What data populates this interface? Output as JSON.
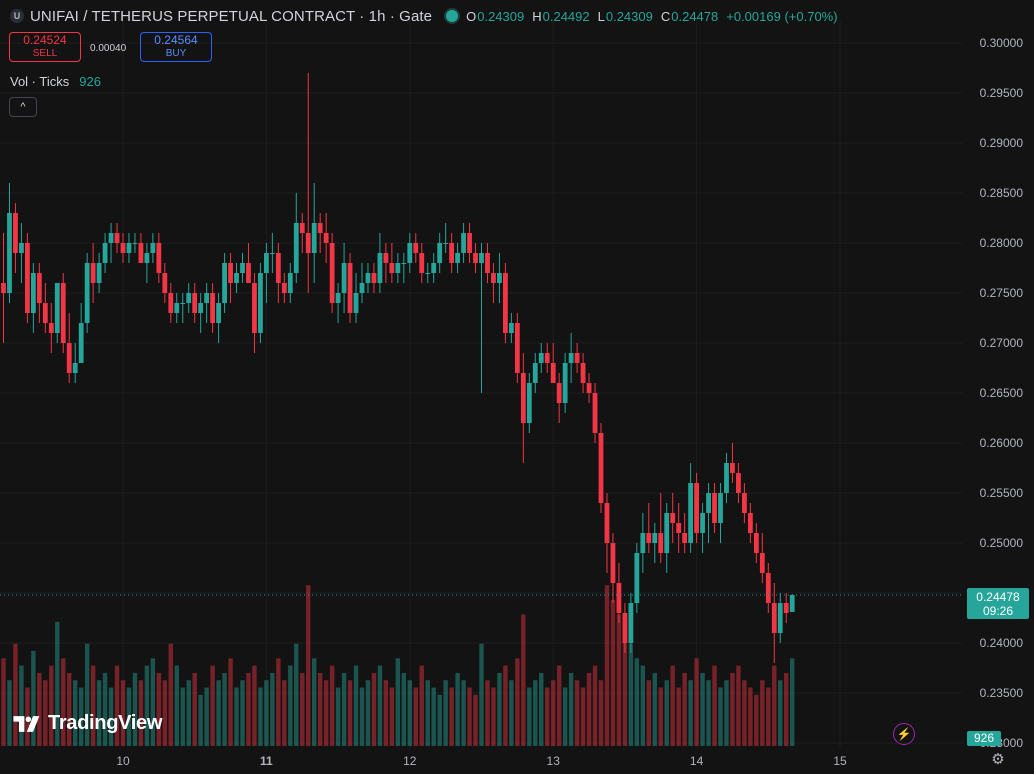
{
  "header": {
    "symbol_icon": "unifai-logo-icon",
    "symbol_icon_glyph": "U",
    "title": "UNIFAI / TETHERUS PERPETUAL CONTRACT · 1h · Gate",
    "ohlc": {
      "o_label": "O",
      "o": "0.24309",
      "h_label": "H",
      "h": "0.24492",
      "l_label": "L",
      "l": "0.24309",
      "c_label": "C",
      "c": "0.24478",
      "change": "+0.00169 (+0.70%)"
    }
  },
  "trade": {
    "sell_price": "0.24524",
    "sell_label": "SELL",
    "spread": "0.00040",
    "buy_price": "0.24564",
    "buy_label": "BUY"
  },
  "volume_legend": {
    "label": "Vol · Ticks",
    "value": "926"
  },
  "collapse_glyph": "^",
  "last_price": {
    "price": "0.24478",
    "countdown": "09:26"
  },
  "volume_badge": "926",
  "branding": {
    "logo_text": "TradingView"
  },
  "colors": {
    "up": "#26a69a",
    "down": "#f23645",
    "background": "#131313",
    "grid": "#1e1e1e"
  },
  "chart_data": {
    "type": "candlestick",
    "interval": "1h",
    "price_axis": {
      "ylim": [
        0.23,
        0.3
      ],
      "ticks": [
        "0.30000",
        "0.29500",
        "0.29000",
        "0.28500",
        "0.28000",
        "0.27500",
        "0.27000",
        "0.26500",
        "0.26000",
        "0.25500",
        "0.25000",
        "0.24500",
        "0.24000",
        "0.23500",
        "0.23000"
      ]
    },
    "time_axis": {
      "ticks": [
        {
          "label": "10",
          "hour": 0,
          "bold": false
        },
        {
          "label": "11",
          "hour": 24,
          "bold": true
        },
        {
          "label": "12",
          "hour": 48,
          "bold": false
        },
        {
          "label": "13",
          "hour": 72,
          "bold": false
        },
        {
          "label": "14",
          "hour": 96,
          "bold": false
        },
        {
          "label": "15",
          "hour": 120,
          "bold": false
        }
      ],
      "first_bar_hour": -20
    },
    "ohlc": [
      [
        0.276,
        0.281,
        0.27,
        0.275
      ],
      [
        0.275,
        0.286,
        0.274,
        0.283
      ],
      [
        0.283,
        0.284,
        0.277,
        0.279
      ],
      [
        0.279,
        0.282,
        0.276,
        0.28
      ],
      [
        0.28,
        0.281,
        0.272,
        0.273
      ],
      [
        0.273,
        0.278,
        0.271,
        0.277
      ],
      [
        0.277,
        0.278,
        0.272,
        0.274
      ],
      [
        0.274,
        0.276,
        0.271,
        0.272
      ],
      [
        0.272,
        0.274,
        0.269,
        0.271
      ],
      [
        0.271,
        0.276,
        0.27,
        0.276
      ],
      [
        0.276,
        0.277,
        0.269,
        0.27
      ],
      [
        0.27,
        0.273,
        0.266,
        0.267
      ],
      [
        0.267,
        0.27,
        0.266,
        0.268
      ],
      [
        0.268,
        0.274,
        0.268,
        0.272
      ],
      [
        0.272,
        0.279,
        0.271,
        0.278
      ],
      [
        0.278,
        0.28,
        0.274,
        0.276
      ],
      [
        0.276,
        0.279,
        0.275,
        0.278
      ],
      [
        0.278,
        0.281,
        0.277,
        0.28
      ],
      [
        0.28,
        0.282,
        0.278,
        0.281
      ],
      [
        0.281,
        0.282,
        0.279,
        0.28
      ],
      [
        0.28,
        0.281,
        0.278,
        0.279
      ],
      [
        0.279,
        0.281,
        0.278,
        0.28
      ],
      [
        0.28,
        0.281,
        0.279,
        0.28
      ],
      [
        0.28,
        0.281,
        0.278,
        0.278
      ],
      [
        0.278,
        0.28,
        0.276,
        0.279
      ],
      [
        0.279,
        0.281,
        0.278,
        0.28
      ],
      [
        0.28,
        0.281,
        0.276,
        0.277
      ],
      [
        0.277,
        0.278,
        0.274,
        0.275
      ],
      [
        0.275,
        0.276,
        0.272,
        0.273
      ],
      [
        0.273,
        0.275,
        0.272,
        0.274
      ],
      [
        0.274,
        0.275,
        0.272,
        0.274
      ],
      [
        0.274,
        0.276,
        0.273,
        0.275
      ],
      [
        0.275,
        0.276,
        0.272,
        0.273
      ],
      [
        0.273,
        0.275,
        0.271,
        0.274
      ],
      [
        0.274,
        0.276,
        0.272,
        0.275
      ],
      [
        0.275,
        0.276,
        0.271,
        0.272
      ],
      [
        0.272,
        0.275,
        0.27,
        0.274
      ],
      [
        0.274,
        0.279,
        0.273,
        0.278
      ],
      [
        0.278,
        0.279,
        0.274,
        0.276
      ],
      [
        0.276,
        0.278,
        0.275,
        0.277
      ],
      [
        0.277,
        0.279,
        0.276,
        0.278
      ],
      [
        0.278,
        0.28,
        0.276,
        0.276
      ],
      [
        0.276,
        0.277,
        0.269,
        0.271
      ],
      [
        0.271,
        0.278,
        0.27,
        0.277
      ],
      [
        0.277,
        0.28,
        0.274,
        0.279
      ],
      [
        0.279,
        0.281,
        0.277,
        0.279
      ],
      [
        0.279,
        0.28,
        0.274,
        0.276
      ],
      [
        0.276,
        0.277,
        0.274,
        0.275
      ],
      [
        0.275,
        0.278,
        0.274,
        0.277
      ],
      [
        0.277,
        0.285,
        0.276,
        0.282
      ],
      [
        0.282,
        0.283,
        0.279,
        0.281
      ],
      [
        0.281,
        0.297,
        0.275,
        0.279
      ],
      [
        0.279,
        0.286,
        0.276,
        0.282
      ],
      [
        0.282,
        0.283,
        0.279,
        0.281
      ],
      [
        0.281,
        0.283,
        0.278,
        0.28
      ],
      [
        0.28,
        0.281,
        0.273,
        0.274
      ],
      [
        0.274,
        0.276,
        0.272,
        0.275
      ],
      [
        0.275,
        0.28,
        0.273,
        0.278
      ],
      [
        0.278,
        0.279,
        0.272,
        0.273
      ],
      [
        0.273,
        0.277,
        0.272,
        0.275
      ],
      [
        0.275,
        0.278,
        0.274,
        0.276
      ],
      [
        0.276,
        0.278,
        0.275,
        0.277
      ],
      [
        0.277,
        0.278,
        0.275,
        0.276
      ],
      [
        0.276,
        0.281,
        0.275,
        0.279
      ],
      [
        0.279,
        0.28,
        0.276,
        0.278
      ],
      [
        0.278,
        0.28,
        0.276,
        0.277
      ],
      [
        0.277,
        0.279,
        0.276,
        0.278
      ],
      [
        0.278,
        0.279,
        0.276,
        0.278
      ],
      [
        0.278,
        0.281,
        0.277,
        0.28
      ],
      [
        0.28,
        0.281,
        0.278,
        0.279
      ],
      [
        0.279,
        0.28,
        0.276,
        0.277
      ],
      [
        0.277,
        0.278,
        0.276,
        0.277
      ],
      [
        0.277,
        0.279,
        0.276,
        0.278
      ],
      [
        0.278,
        0.281,
        0.277,
        0.28
      ],
      [
        0.28,
        0.282,
        0.279,
        0.28
      ],
      [
        0.28,
        0.281,
        0.277,
        0.278
      ],
      [
        0.278,
        0.28,
        0.277,
        0.279
      ],
      [
        0.279,
        0.282,
        0.278,
        0.281
      ],
      [
        0.281,
        0.282,
        0.278,
        0.279
      ],
      [
        0.279,
        0.28,
        0.277,
        0.278
      ],
      [
        0.278,
        0.28,
        0.265,
        0.279
      ],
      [
        0.279,
        0.28,
        0.276,
        0.277
      ],
      [
        0.277,
        0.278,
        0.274,
        0.276
      ],
      [
        0.276,
        0.279,
        0.274,
        0.277
      ],
      [
        0.277,
        0.278,
        0.27,
        0.271
      ],
      [
        0.271,
        0.273,
        0.27,
        0.272
      ],
      [
        0.272,
        0.273,
        0.266,
        0.267
      ],
      [
        0.267,
        0.269,
        0.258,
        0.262
      ],
      [
        0.262,
        0.267,
        0.261,
        0.266
      ],
      [
        0.266,
        0.269,
        0.265,
        0.268
      ],
      [
        0.268,
        0.27,
        0.267,
        0.269
      ],
      [
        0.269,
        0.27,
        0.267,
        0.268
      ],
      [
        0.268,
        0.27,
        0.266,
        0.266
      ],
      [
        0.266,
        0.267,
        0.262,
        0.264
      ],
      [
        0.264,
        0.269,
        0.263,
        0.268
      ],
      [
        0.268,
        0.271,
        0.266,
        0.269
      ],
      [
        0.269,
        0.27,
        0.267,
        0.268
      ],
      [
        0.268,
        0.269,
        0.265,
        0.266
      ],
      [
        0.266,
        0.267,
        0.264,
        0.265
      ],
      [
        0.265,
        0.266,
        0.26,
        0.261
      ],
      [
        0.261,
        0.262,
        0.253,
        0.254
      ],
      [
        0.254,
        0.255,
        0.247,
        0.25
      ],
      [
        0.25,
        0.251,
        0.244,
        0.246
      ],
      [
        0.246,
        0.248,
        0.242,
        0.243
      ],
      [
        0.243,
        0.244,
        0.239,
        0.24
      ],
      [
        0.24,
        0.245,
        0.239,
        0.244
      ],
      [
        0.244,
        0.25,
        0.243,
        0.249
      ],
      [
        0.249,
        0.253,
        0.247,
        0.251
      ],
      [
        0.251,
        0.254,
        0.249,
        0.25
      ],
      [
        0.25,
        0.252,
        0.248,
        0.251
      ],
      [
        0.251,
        0.255,
        0.248,
        0.249
      ],
      [
        0.249,
        0.254,
        0.247,
        0.253
      ],
      [
        0.253,
        0.255,
        0.25,
        0.252
      ],
      [
        0.252,
        0.254,
        0.249,
        0.251
      ],
      [
        0.251,
        0.253,
        0.249,
        0.25
      ],
      [
        0.25,
        0.258,
        0.249,
        0.256
      ],
      [
        0.256,
        0.257,
        0.25,
        0.251
      ],
      [
        0.251,
        0.254,
        0.249,
        0.253
      ],
      [
        0.253,
        0.256,
        0.25,
        0.255
      ],
      [
        0.255,
        0.256,
        0.251,
        0.252
      ],
      [
        0.252,
        0.256,
        0.25,
        0.255
      ],
      [
        0.255,
        0.259,
        0.254,
        0.258
      ],
      [
        0.258,
        0.26,
        0.256,
        0.257
      ],
      [
        0.257,
        0.258,
        0.254,
        0.255
      ],
      [
        0.255,
        0.256,
        0.252,
        0.253
      ],
      [
        0.253,
        0.254,
        0.25,
        0.251
      ],
      [
        0.251,
        0.252,
        0.248,
        0.249
      ],
      [
        0.249,
        0.251,
        0.246,
        0.247
      ],
      [
        0.247,
        0.248,
        0.243,
        0.244
      ],
      [
        0.244,
        0.246,
        0.238,
        0.241
      ],
      [
        0.241,
        0.245,
        0.24,
        0.244
      ],
      [
        0.244,
        0.245,
        0.242,
        0.243
      ],
      [
        0.2431,
        0.2449,
        0.2431,
        0.2448
      ]
    ],
    "volume": [
      60,
      45,
      70,
      55,
      40,
      65,
      50,
      45,
      55,
      85,
      60,
      50,
      45,
      40,
      70,
      55,
      45,
      50,
      40,
      55,
      45,
      40,
      50,
      45,
      55,
      60,
      50,
      45,
      70,
      55,
      40,
      45,
      50,
      35,
      40,
      55,
      45,
      50,
      60,
      40,
      45,
      50,
      55,
      40,
      45,
      50,
      60,
      45,
      55,
      70,
      50,
      110,
      60,
      50,
      45,
      55,
      40,
      50,
      45,
      55,
      40,
      45,
      50,
      55,
      45,
      40,
      60,
      50,
      45,
      40,
      55,
      45,
      40,
      35,
      45,
      40,
      50,
      45,
      40,
      35,
      70,
      45,
      40,
      50,
      55,
      45,
      60,
      90,
      40,
      45,
      50,
      40,
      45,
      55,
      40,
      50,
      45,
      40,
      50,
      55,
      45,
      110,
      100,
      90,
      80,
      70,
      60,
      55,
      45,
      50,
      40,
      45,
      55,
      40,
      50,
      45,
      60,
      50,
      45,
      55,
      40,
      45,
      50,
      55,
      45,
      40,
      35,
      45,
      40,
      55,
      45,
      50,
      60
    ],
    "volume_max": 130
  }
}
